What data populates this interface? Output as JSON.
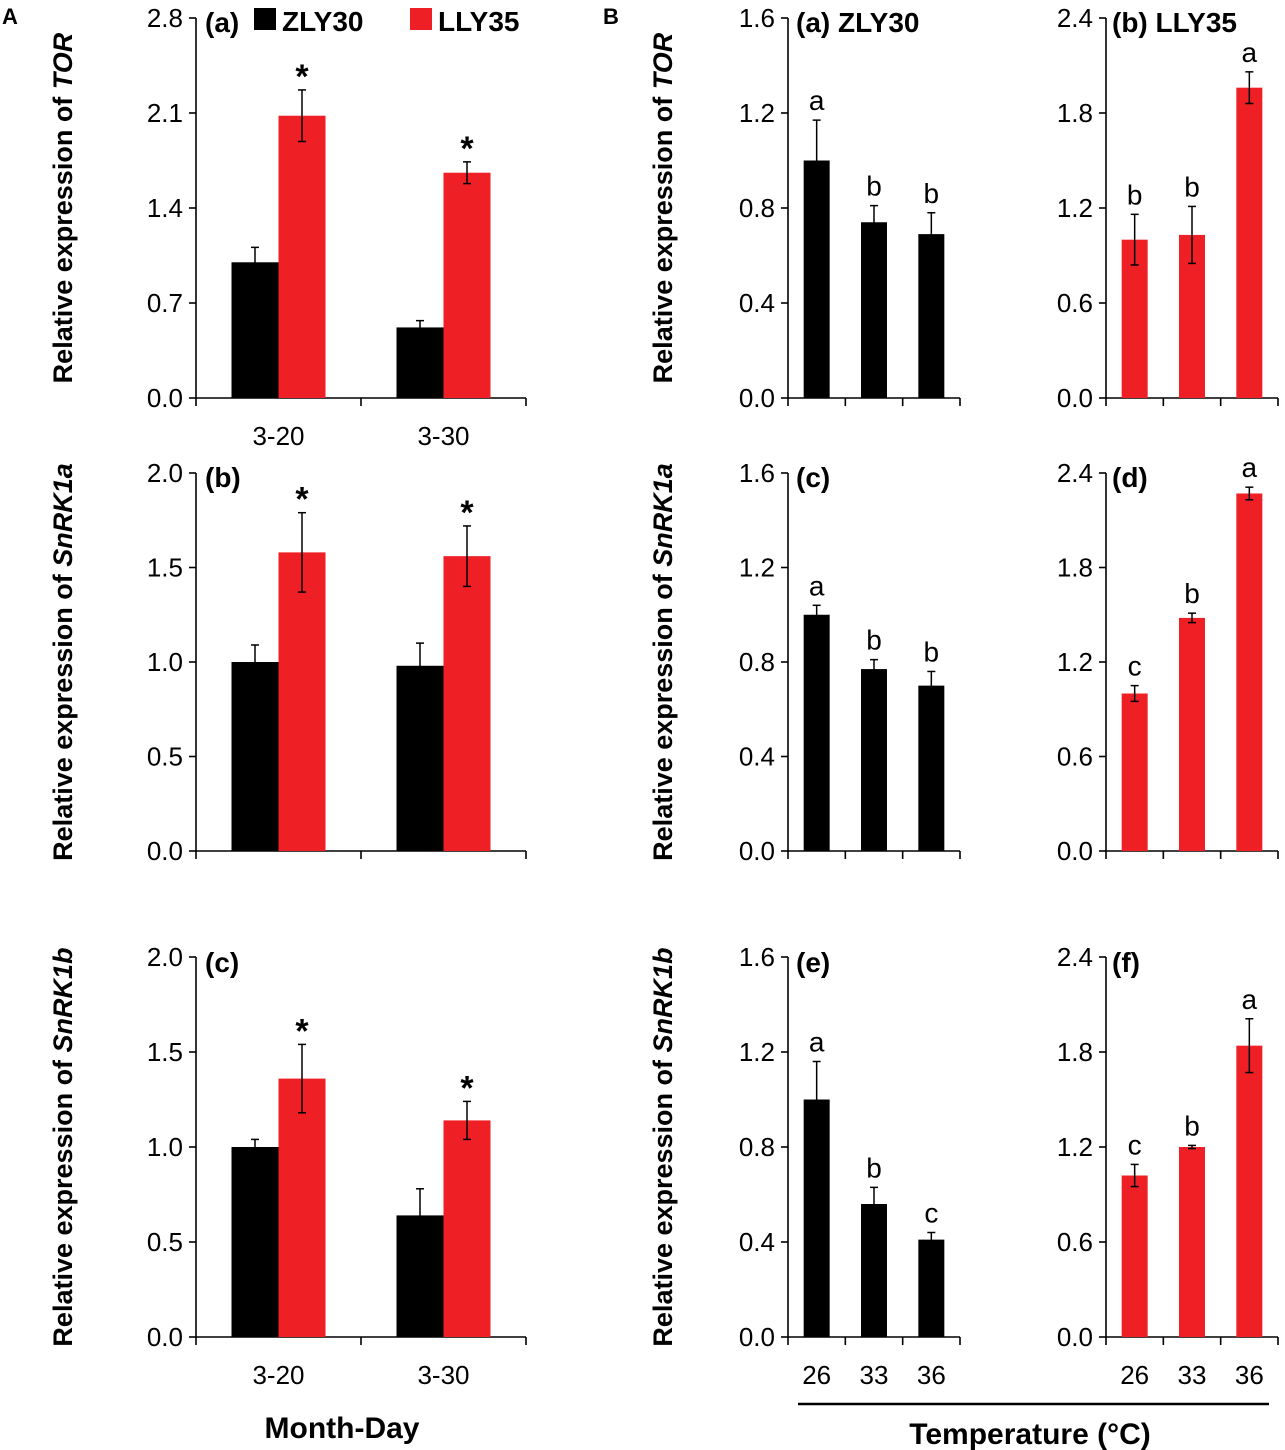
{
  "figure": {
    "section_labels": [
      "A",
      "B"
    ],
    "xlabel_a": "Month-Day",
    "xlabel_b": "Temperature (°C)",
    "legend": [
      "ZLY30",
      "LLY35"
    ]
  },
  "colors": {
    "ZLY30": "#000000",
    "LLY35": "#ee1f25"
  },
  "chart_data": [
    {
      "id": "A-a",
      "type": "bar",
      "tag": "(a)",
      "ylabel_prefix": "Relative expression of ",
      "gene": "TOR",
      "categories": [
        "3-20",
        "3-30"
      ],
      "series": [
        {
          "name": "ZLY30",
          "values": [
            1.0,
            0.52
          ],
          "errors": [
            0.11,
            0.05
          ]
        },
        {
          "name": "LLY35",
          "values": [
            2.08,
            1.66
          ],
          "errors": [
            0.19,
            0.08
          ]
        }
      ],
      "significance": [
        "*",
        "*"
      ],
      "ylim": [
        0,
        2.8
      ],
      "yticks": [
        "0.0",
        "0.7",
        "1.4",
        "2.1",
        "2.8"
      ]
    },
    {
      "id": "A-b",
      "type": "bar",
      "tag": "(b)",
      "ylabel_prefix": "Relative expression of ",
      "gene": "SnRK1a",
      "categories": [
        "3-20",
        "3-30"
      ],
      "series": [
        {
          "name": "ZLY30",
          "values": [
            1.0,
            0.98
          ],
          "errors": [
            0.09,
            0.12
          ]
        },
        {
          "name": "LLY35",
          "values": [
            1.58,
            1.56
          ],
          "errors": [
            0.21,
            0.16
          ]
        }
      ],
      "significance": [
        "*",
        "*"
      ],
      "ylim": [
        0,
        2.0
      ],
      "yticks": [
        "0.0",
        "0.5",
        "1.0",
        "1.5",
        "2.0"
      ]
    },
    {
      "id": "A-c",
      "type": "bar",
      "tag": "(c)",
      "ylabel_prefix": "Relative expression of ",
      "gene": "SnRK1b",
      "categories": [
        "3-20",
        "3-30"
      ],
      "series": [
        {
          "name": "ZLY30",
          "values": [
            1.0,
            0.64
          ],
          "errors": [
            0.04,
            0.14
          ]
        },
        {
          "name": "LLY35",
          "values": [
            1.36,
            1.14
          ],
          "errors": [
            0.18,
            0.1
          ]
        }
      ],
      "significance": [
        "*",
        "*"
      ],
      "ylim": [
        0,
        2.0
      ],
      "yticks": [
        "0.0",
        "0.5",
        "1.0",
        "1.5",
        "2.0"
      ]
    },
    {
      "id": "B-a",
      "type": "bar",
      "tag": "(a) ZLY30",
      "ylabel_prefix": "Relative expression of ",
      "gene": "TOR",
      "categories": [
        "26",
        "33",
        "36"
      ],
      "series": [
        {
          "name": "ZLY30",
          "values": [
            1.0,
            0.74,
            0.69
          ],
          "errors": [
            0.17,
            0.07,
            0.09
          ]
        }
      ],
      "letters": [
        "a",
        "b",
        "b"
      ],
      "ylim": [
        0,
        1.6
      ],
      "yticks": [
        "0.0",
        "0.4",
        "0.8",
        "1.2",
        "1.6"
      ]
    },
    {
      "id": "B-b",
      "type": "bar",
      "tag": "(b) LLY35",
      "categories": [
        "26",
        "33",
        "36"
      ],
      "series": [
        {
          "name": "LLY35",
          "values": [
            1.0,
            1.03,
            1.96
          ],
          "errors": [
            0.16,
            0.18,
            0.1
          ]
        }
      ],
      "letters": [
        "b",
        "b",
        "a"
      ],
      "ylim": [
        0,
        2.4
      ],
      "yticks": [
        "0.0",
        "0.6",
        "1.2",
        "1.8",
        "2.4"
      ]
    },
    {
      "id": "B-c",
      "type": "bar",
      "tag": "(c)",
      "ylabel_prefix": "Relative expression of ",
      "gene": "SnRK1a",
      "categories": [
        "26",
        "33",
        "36"
      ],
      "series": [
        {
          "name": "ZLY30",
          "values": [
            1.0,
            0.77,
            0.7
          ],
          "errors": [
            0.04,
            0.04,
            0.06
          ]
        }
      ],
      "letters": [
        "a",
        "b",
        "b"
      ],
      "ylim": [
        0,
        1.6
      ],
      "yticks": [
        "0.0",
        "0.4",
        "0.8",
        "1.2",
        "1.6"
      ]
    },
    {
      "id": "B-d",
      "type": "bar",
      "tag": "(d)",
      "categories": [
        "26",
        "33",
        "36"
      ],
      "series": [
        {
          "name": "LLY35",
          "values": [
            1.0,
            1.48,
            2.27
          ],
          "errors": [
            0.05,
            0.03,
            0.04
          ]
        }
      ],
      "letters": [
        "c",
        "b",
        "a"
      ],
      "ylim": [
        0,
        2.4
      ],
      "yticks": [
        "0.0",
        "0.6",
        "1.2",
        "1.8",
        "2.4"
      ]
    },
    {
      "id": "B-e",
      "type": "bar",
      "tag": "(e)",
      "ylabel_prefix": "Relative expression of ",
      "gene": "SnRK1b",
      "categories": [
        "26",
        "33",
        "36"
      ],
      "series": [
        {
          "name": "ZLY30",
          "values": [
            1.0,
            0.56,
            0.41
          ],
          "errors": [
            0.16,
            0.07,
            0.03
          ]
        }
      ],
      "letters": [
        "a",
        "b",
        "c"
      ],
      "ylim": [
        0,
        1.6
      ],
      "yticks": [
        "0.0",
        "0.4",
        "0.8",
        "1.2",
        "1.6"
      ]
    },
    {
      "id": "B-f",
      "type": "bar",
      "tag": "(f)",
      "categories": [
        "26",
        "33",
        "36"
      ],
      "series": [
        {
          "name": "LLY35",
          "values": [
            1.02,
            1.2,
            1.84
          ],
          "errors": [
            0.07,
            0.01,
            0.17
          ]
        }
      ],
      "letters": [
        "c",
        "b",
        "a"
      ],
      "ylim": [
        0,
        2.4
      ],
      "yticks": [
        "0.0",
        "0.6",
        "1.2",
        "1.8",
        "2.4"
      ]
    }
  ]
}
